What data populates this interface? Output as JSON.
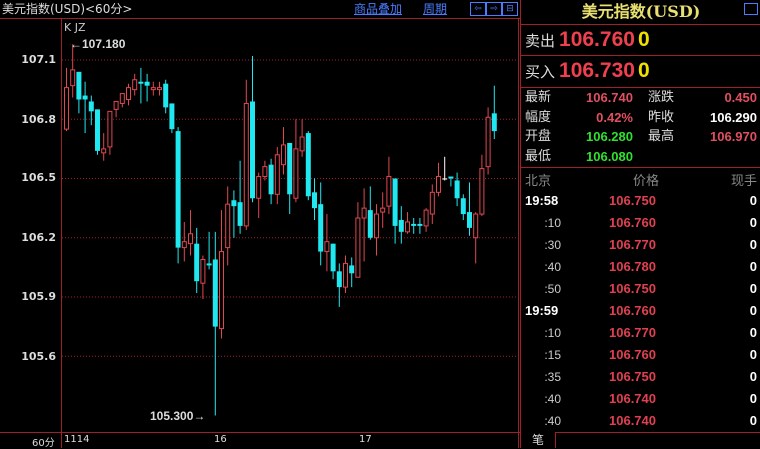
{
  "header": {
    "title": "美元指数(USD)<60分>",
    "overlay_link": "商品叠加",
    "period_link": "周期",
    "nav": [
      "⇦",
      "⇨",
      "⊟"
    ]
  },
  "chart": {
    "indicator_label": "K  JZ",
    "high_marker": "107.180",
    "low_marker": "105.300",
    "period_label": "60分",
    "date_labels": [
      "1114",
      "16",
      "17"
    ],
    "colors": {
      "up": "#e04850",
      "down": "#20e8f0",
      "grid": "#a0202a"
    }
  },
  "chart_data": {
    "type": "candlestick",
    "y_ticks": [
      "107.1",
      "106.8",
      "106.5",
      "106.2",
      "105.9",
      "105.6"
    ],
    "ylim": [
      105.25,
      107.3
    ],
    "ohlc": [
      [
        106.75,
        107.06,
        106.74,
        106.96
      ],
      [
        106.97,
        107.18,
        106.91,
        107.05
      ],
      [
        107.04,
        107.04,
        106.83,
        106.9
      ],
      [
        106.92,
        106.99,
        106.73,
        106.9
      ],
      [
        106.89,
        106.92,
        106.77,
        106.84
      ],
      [
        106.85,
        106.85,
        106.62,
        106.64
      ],
      [
        106.63,
        106.73,
        106.59,
        106.65
      ],
      [
        106.66,
        106.84,
        106.62,
        106.84
      ],
      [
        106.85,
        106.89,
        106.81,
        106.89
      ],
      [
        106.88,
        106.93,
        106.86,
        106.93
      ],
      [
        106.9,
        106.98,
        106.87,
        106.96
      ],
      [
        106.95,
        107.03,
        106.92,
        107.0
      ],
      [
        106.99,
        107.06,
        106.88,
        106.98
      ],
      [
        106.99,
        107.03,
        106.89,
        106.97
      ],
      [
        106.95,
        106.99,
        106.92,
        106.96
      ],
      [
        106.95,
        106.99,
        106.92,
        106.96
      ],
      [
        106.98,
        107.0,
        106.83,
        106.86
      ],
      [
        106.88,
        106.88,
        106.73,
        106.75
      ],
      [
        106.74,
        106.76,
        106.07,
        106.15
      ],
      [
        106.15,
        106.28,
        106.08,
        106.18
      ],
      [
        106.17,
        106.34,
        106.11,
        106.22
      ],
      [
        106.17,
        106.25,
        105.92,
        105.98
      ],
      [
        105.97,
        106.11,
        105.89,
        106.09
      ],
      [
        106.07,
        106.23,
        106.04,
        106.06
      ],
      [
        106.09,
        106.23,
        105.3,
        105.75
      ],
      [
        105.74,
        106.34,
        105.69,
        106.13
      ],
      [
        106.15,
        106.46,
        106.06,
        106.37
      ],
      [
        106.39,
        106.44,
        106.2,
        106.36
      ],
      [
        106.38,
        106.59,
        106.22,
        106.26
      ],
      [
        106.26,
        107.0,
        106.24,
        106.88
      ],
      [
        106.89,
        107.12,
        106.38,
        106.4
      ],
      [
        106.4,
        106.53,
        106.3,
        106.51
      ],
      [
        106.51,
        106.59,
        106.49,
        106.56
      ],
      [
        106.57,
        106.6,
        106.37,
        106.42
      ],
      [
        106.42,
        106.66,
        106.37,
        106.62
      ],
      [
        106.57,
        106.76,
        106.52,
        106.67
      ],
      [
        106.68,
        106.68,
        106.32,
        106.42
      ],
      [
        106.4,
        106.8,
        106.38,
        106.65
      ],
      [
        106.64,
        106.8,
        106.61,
        106.71
      ],
      [
        106.73,
        106.74,
        106.39,
        106.41
      ],
      [
        106.43,
        106.5,
        106.29,
        106.35
      ],
      [
        106.37,
        106.48,
        106.06,
        106.13
      ],
      [
        106.13,
        106.32,
        106.03,
        106.18
      ],
      [
        106.17,
        106.17,
        105.99,
        106.03
      ],
      [
        106.03,
        106.07,
        105.85,
        105.95
      ],
      [
        105.95,
        106.11,
        105.92,
        106.07
      ],
      [
        106.06,
        106.1,
        105.95,
        106.02
      ],
      [
        106.0,
        106.38,
        106.0,
        106.3
      ],
      [
        106.3,
        106.45,
        106.08,
        106.35
      ],
      [
        106.34,
        106.46,
        106.19,
        106.2
      ],
      [
        106.2,
        106.37,
        106.11,
        106.32
      ],
      [
        106.33,
        106.43,
        106.25,
        106.35
      ],
      [
        106.36,
        106.61,
        106.32,
        106.51
      ],
      [
        106.5,
        106.5,
        106.17,
        106.26
      ],
      [
        106.29,
        106.36,
        106.17,
        106.23
      ],
      [
        106.23,
        106.33,
        106.22,
        106.28
      ],
      [
        106.27,
        106.3,
        106.22,
        106.26
      ],
      [
        106.27,
        106.3,
        106.22,
        106.26
      ],
      [
        106.26,
        106.35,
        106.23,
        106.34
      ],
      [
        106.32,
        106.47,
        106.27,
        106.43
      ],
      [
        106.43,
        106.58,
        106.41,
        106.51
      ],
      [
        106.5,
        106.61,
        106.49,
        106.5
      ],
      [
        106.51,
        106.51,
        106.46,
        106.5
      ],
      [
        106.49,
        106.53,
        106.36,
        106.4
      ],
      [
        106.4,
        106.42,
        106.29,
        106.32
      ],
      [
        106.33,
        106.48,
        106.21,
        106.25
      ],
      [
        106.2,
        106.33,
        106.07,
        106.32
      ],
      [
        106.32,
        106.62,
        106.31,
        106.55
      ],
      [
        106.56,
        106.86,
        106.52,
        106.81
      ],
      [
        106.83,
        106.97,
        106.7,
        106.74
      ]
    ]
  },
  "panel": {
    "title": "美元指数(USD)",
    "sell_label": "卖出",
    "sell_price": "106.760",
    "sell_vol": "0",
    "buy_label": "买入",
    "buy_price": "106.730",
    "buy_vol": "0",
    "stats": [
      {
        "label": "最新",
        "value": "106.740",
        "color": "#e05060"
      },
      {
        "label": "涨跌",
        "value": "0.450",
        "color": "#e05060"
      },
      {
        "label": "幅度",
        "value": "0.42%",
        "color": "#e05060"
      },
      {
        "label": "昨收",
        "value": "106.290",
        "color": "#ffffff"
      },
      {
        "label": "开盘",
        "value": "106.280",
        "color": "#30e030"
      },
      {
        "label": "最高",
        "value": "106.970",
        "color": "#e05060"
      },
      {
        "label": "最低",
        "value": "106.080",
        "color": "#30e030"
      }
    ],
    "tick_headers": [
      "北京",
      "价格",
      "现手"
    ],
    "ticks": [
      {
        "time": "19:58",
        "price": "106.750",
        "vol": "0"
      },
      {
        "time": ":10",
        "price": "106.760",
        "vol": "0"
      },
      {
        "time": ":30",
        "price": "106.770",
        "vol": "0"
      },
      {
        "time": ":40",
        "price": "106.780",
        "vol": "0"
      },
      {
        "time": ":50",
        "price": "106.750",
        "vol": "0"
      },
      {
        "time": "19:59",
        "price": "106.760",
        "vol": "0"
      },
      {
        "time": ":10",
        "price": "106.770",
        "vol": "0"
      },
      {
        "time": ":15",
        "price": "106.760",
        "vol": "0"
      },
      {
        "time": ":35",
        "price": "106.750",
        "vol": "0"
      },
      {
        "time": ":40",
        "price": "106.740",
        "vol": "0"
      },
      {
        "time": ":40",
        "price": "106.740",
        "vol": "0"
      }
    ],
    "tab_label": "笔"
  }
}
